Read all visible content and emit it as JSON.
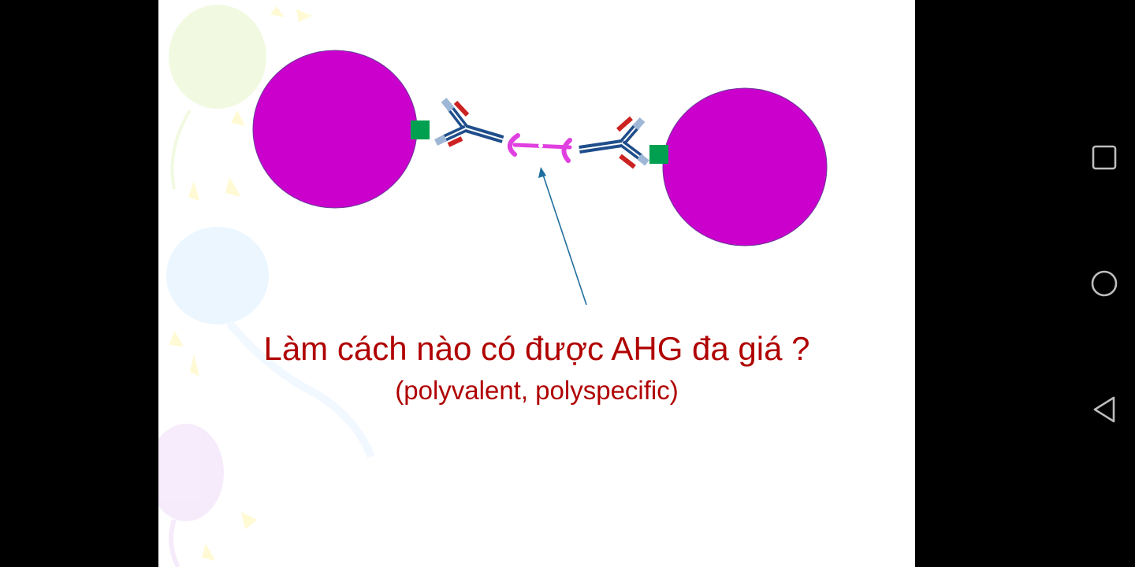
{
  "slide": {
    "title": "Làm cách nào có được AHG đa giá ?",
    "subtitle": "(polyvalent, polyspecific)",
    "colors": {
      "cell": "#cc00cc",
      "antigen": "#00a050",
      "antibody": "#1f4e8c",
      "ahg": "#e040e0",
      "arrow": "#1f6f9f",
      "text": "#b00000"
    }
  },
  "navigation": {
    "recents_icon": "square-icon",
    "home_icon": "circle-icon",
    "back_icon": "triangle-back-icon"
  }
}
